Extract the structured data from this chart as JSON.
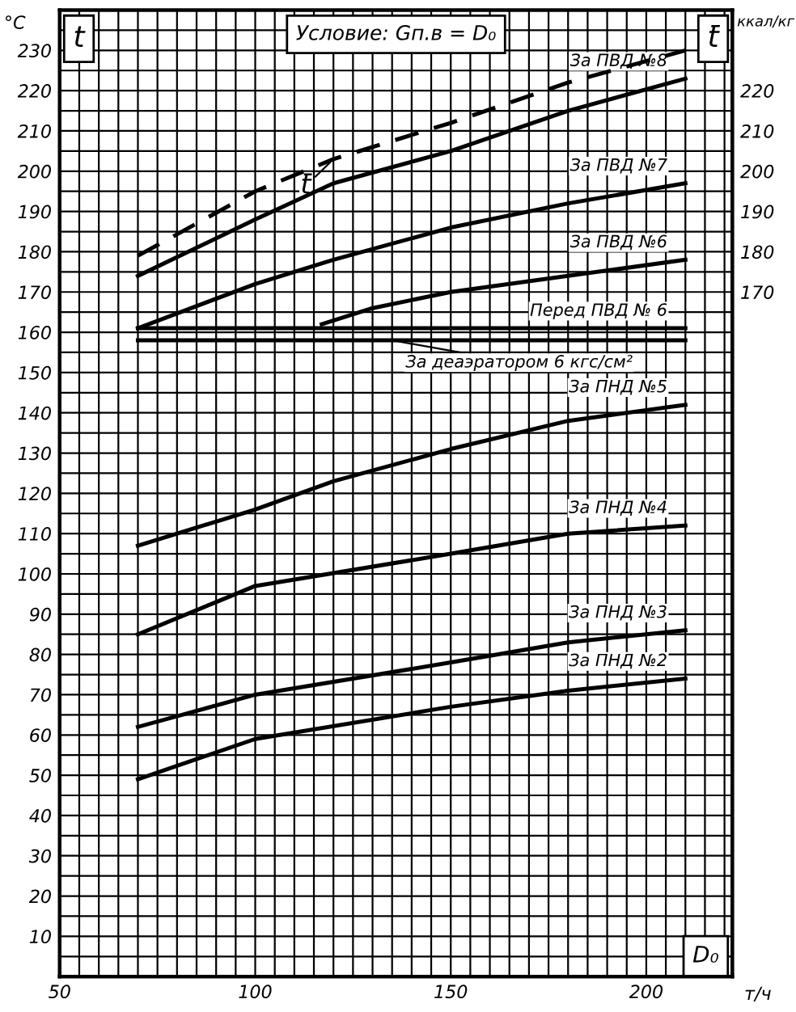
{
  "chart_data": {
    "type": "line",
    "title": "Условие: Gп.в = D₀",
    "xlabel": "т/ч",
    "ylabel": "°C",
    "y2label": "ккал/кг",
    "xlim": [
      50,
      222
    ],
    "ylim": [
      0,
      240
    ],
    "y2lim": [
      0,
      240
    ],
    "xticks": [
      50,
      {
        "value": 55,
        "label": null
      },
      {
        "value": 60,
        "label": null
      },
      {
        "value": 65,
        "label": null
      },
      {
        "value": 70,
        "label": null
      },
      {
        "value": 75,
        "label": null
      },
      {
        "value": 80,
        "label": null
      },
      {
        "value": 85,
        "label": null
      },
      {
        "value": 90,
        "label": null
      },
      {
        "value": 95,
        "label": null
      },
      100,
      {
        "value": 105,
        "label": null
      },
      {
        "value": 110,
        "label": null
      },
      {
        "value": 115,
        "label": null
      },
      {
        "value": 120,
        "label": null
      },
      {
        "value": 125,
        "label": null
      },
      {
        "value": 130,
        "label": null
      },
      {
        "value": 135,
        "label": null
      },
      {
        "value": 140,
        "label": null
      },
      {
        "value": 145,
        "label": null
      },
      150,
      {
        "value": 155,
        "label": null
      },
      {
        "value": 160,
        "label": null
      },
      {
        "value": 165,
        "label": null
      },
      {
        "value": 170,
        "label": null
      },
      {
        "value": 175,
        "label": null
      },
      {
        "value": 180,
        "label": null
      },
      {
        "value": 185,
        "label": null
      },
      {
        "value": 190,
        "label": null
      },
      {
        "value": 195,
        "label": null
      },
      200,
      {
        "value": 205,
        "label": null
      },
      {
        "value": 210,
        "label": null
      },
      {
        "value": 215,
        "label": null
      },
      {
        "value": 220,
        "label": null
      }
    ],
    "yticks": [
      {
        "value": 0,
        "label": null
      },
      {
        "value": 5,
        "label": null
      },
      10,
      {
        "value": 15,
        "label": null
      },
      20,
      {
        "value": 25,
        "label": null
      },
      30,
      {
        "value": 35,
        "label": null
      },
      40,
      {
        "value": 45,
        "label": null
      },
      50,
      {
        "value": 55,
        "label": null
      },
      60,
      {
        "value": 65,
        "label": null
      },
      70,
      {
        "value": 75,
        "label": null
      },
      80,
      {
        "value": 85,
        "label": null
      },
      90,
      {
        "value": 95,
        "label": null
      },
      100,
      {
        "value": 105,
        "label": null
      },
      110,
      {
        "value": 115,
        "label": null
      },
      120,
      {
        "value": 125,
        "label": null
      },
      130,
      {
        "value": 135,
        "label": null
      },
      140,
      {
        "value": 145,
        "label": null
      },
      150,
      {
        "value": 155,
        "label": null
      },
      160,
      {
        "value": 165,
        "label": null
      },
      170,
      {
        "value": 175,
        "label": null
      },
      180,
      {
        "value": 185,
        "label": null
      },
      190,
      {
        "value": 195,
        "label": null
      },
      200,
      {
        "value": 205,
        "label": null
      },
      210,
      {
        "value": 215,
        "label": null
      },
      220,
      {
        "value": 225,
        "label": null
      },
      230,
      {
        "value": 235,
        "label": null
      }
    ],
    "y2ticks": [
      170,
      180,
      190,
      200,
      210,
      220
    ],
    "grid": true,
    "legend": false,
    "marker": "none",
    "series": [
      {
        "name": "За ПВД №8",
        "color": "#000000",
        "x": [
          70,
          100,
          120,
          150,
          180,
          210
        ],
        "values": [
          174,
          188,
          197,
          205,
          215,
          223
        ]
      },
      {
        "color": "#000000",
        "line_style": "dashed",
        "x": [
          70,
          100,
          120,
          150,
          180,
          210
        ],
        "values": [
          179,
          195,
          203,
          212,
          222,
          230
        ]
      },
      {
        "name": "За ПВД №7",
        "color": "#000000",
        "x": [
          70,
          100,
          120,
          150,
          180,
          210
        ],
        "values": [
          161,
          172,
          178,
          186,
          192,
          197
        ]
      },
      {
        "name": "За ПВД №6",
        "color": "#000000",
        "x": [
          117,
          130,
          150,
          180,
          210
        ],
        "values": [
          162,
          166,
          170,
          174,
          178
        ]
      },
      {
        "name": "Перед ПВД № 6",
        "color": "#000000",
        "x": [
          70,
          210
        ],
        "values": [
          161,
          161
        ]
      },
      {
        "color": "#000000",
        "x": [
          70,
          210
        ],
        "values": [
          158,
          158
        ]
      },
      {
        "name": "За ПНД №5",
        "color": "#000000",
        "x": [
          70,
          100,
          120,
          150,
          180,
          210
        ],
        "values": [
          107,
          116,
          123,
          131,
          138,
          142
        ]
      },
      {
        "name": "За ПНД №4",
        "color": "#000000",
        "x": [
          70,
          90,
          100,
          150,
          180,
          210
        ],
        "values": [
          85,
          93,
          97,
          105,
          110,
          112
        ]
      },
      {
        "name": "За ПНД №3",
        "color": "#000000",
        "x": [
          70,
          100,
          150,
          180,
          210
        ],
        "values": [
          62,
          70,
          78,
          83,
          86
        ]
      },
      {
        "name": "За ПНД №2",
        "color": "#000000",
        "x": [
          70,
          100,
          150,
          180,
          210
        ],
        "values": [
          49,
          59,
          67,
          71,
          74
        ]
      }
    ],
    "annotations": [
      {
        "text": "t̄",
        "x": 120,
        "y": 203
      },
      {
        "text": "За деаэратором 6 кгс/см²",
        "x": 135,
        "y": 158
      },
      "t",
      "t̄",
      "D₀"
    ]
  }
}
